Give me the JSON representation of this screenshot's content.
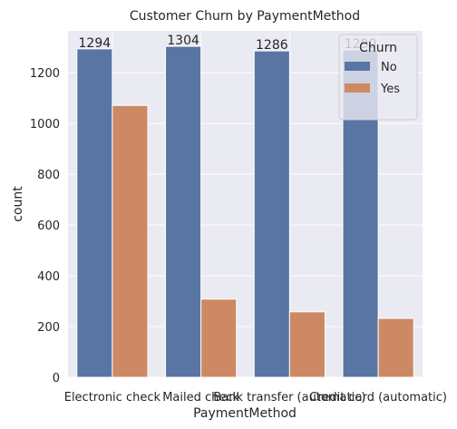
{
  "chart_data": {
    "type": "bar",
    "title": "Customer Churn by PaymentMethod",
    "xlabel": "PaymentMethod",
    "ylabel": "count",
    "categories": [
      "Electronic check",
      "Mailed check",
      "Bank transfer (automatic)",
      "Credit card (automatic)"
    ],
    "series": [
      {
        "name": "No",
        "values": [
          1294,
          1304,
          1286,
          1290
        ],
        "color": "#5975a4"
      },
      {
        "name": "Yes",
        "values": [
          1071,
          308,
          258,
          232
        ],
        "color": "#cc8963"
      }
    ],
    "bar_labels": [
      "1294",
      "1304",
      "1286",
      "1290"
    ],
    "ylim": [
      0,
      1365
    ],
    "yticks": [
      0,
      200,
      400,
      600,
      800,
      1000,
      1200
    ],
    "grid": true,
    "legend": {
      "title": "Churn",
      "placement": "top-right"
    },
    "background": "#eaeaf2"
  }
}
